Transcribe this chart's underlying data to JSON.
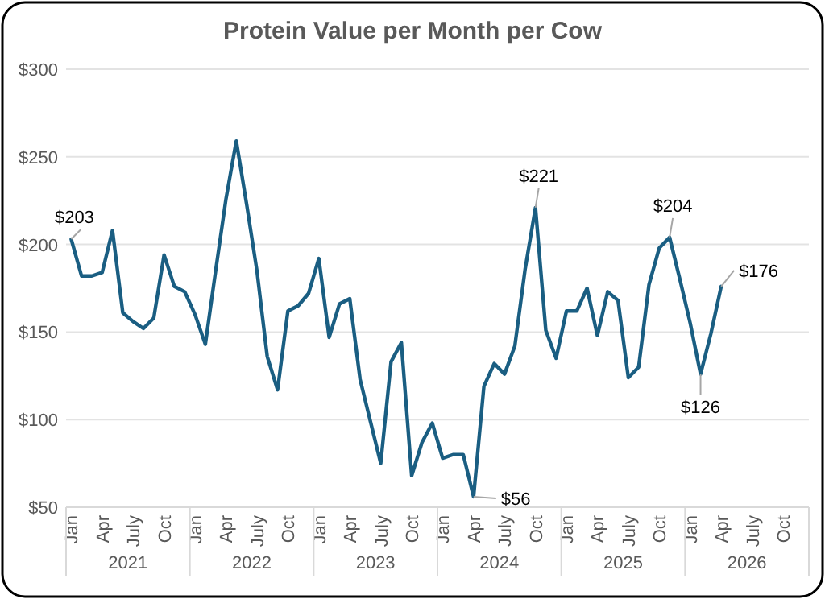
{
  "chart_data": {
    "type": "line",
    "title": "Protein Value per Month per Cow",
    "categories": [
      "Jan",
      null,
      null,
      "Apr",
      null,
      null,
      "July",
      null,
      null,
      "Oct",
      null,
      null,
      "Jan",
      null,
      null,
      "Apr",
      null,
      null,
      "July",
      null,
      null,
      "Oct",
      null,
      null,
      "Jan",
      null,
      null,
      "Apr",
      null,
      null,
      "July",
      null,
      null,
      "Oct",
      null,
      null,
      "Jan",
      null,
      null,
      "Apr",
      null,
      null,
      "July",
      null,
      null,
      "Oct",
      null,
      null,
      "Jan",
      null,
      null,
      "Apr",
      null,
      null,
      "July",
      null,
      null,
      "Oct",
      null,
      null,
      "Jan",
      null,
      null,
      "Apr",
      null,
      null,
      "July",
      null,
      null,
      "Oct",
      null,
      null
    ],
    "annotations": [
      "2021",
      "2022",
      "2023",
      "2024",
      "2025",
      "2026"
    ],
    "series": [
      {
        "color": "#1a5e82",
        "values": [
          203,
          182,
          182,
          184,
          208,
          161,
          156,
          152,
          158,
          194,
          176,
          173,
          160,
          143,
          185,
          226,
          259,
          223,
          185,
          136,
          117,
          162,
          165,
          172,
          192,
          147,
          166,
          169,
          123,
          99,
          75,
          133,
          144,
          68,
          87,
          98,
          78,
          80,
          80,
          56,
          119,
          132,
          126,
          142,
          186,
          221,
          151,
          135,
          162,
          162,
          175,
          148,
          173,
          168,
          124,
          130,
          177,
          198,
          204,
          180,
          155,
          126,
          149,
          176,
          null,
          null,
          null,
          null,
          null,
          null,
          null,
          null
        ],
        "value_labels": [
          "$203",
          null,
          null,
          null,
          null,
          null,
          null,
          null,
          null,
          null,
          null,
          null,
          null,
          null,
          null,
          null,
          null,
          null,
          null,
          null,
          null,
          null,
          null,
          null,
          null,
          null,
          null,
          null,
          null,
          null,
          null,
          null,
          null,
          null,
          null,
          null,
          null,
          null,
          null,
          "$56",
          null,
          null,
          null,
          null,
          null,
          "$221",
          null,
          null,
          null,
          null,
          null,
          null,
          null,
          null,
          null,
          null,
          null,
          null,
          "$204",
          null,
          null,
          "$126",
          null,
          "$176",
          null,
          null,
          null,
          null,
          null,
          null,
          null,
          null
        ]
      }
    ],
    "ylim": [
      50,
      300
    ],
    "yticks": [
      {
        "value": 50,
        "label": "$50"
      },
      {
        "value": 100,
        "label": "$100"
      },
      {
        "value": 150,
        "label": "$150"
      },
      {
        "value": 200,
        "label": "$200"
      },
      {
        "value": 250,
        "label": "$250"
      },
      {
        "value": 300,
        "label": "$300"
      }
    ],
    "grid": "y",
    "marker": "none",
    "line_style": "solid"
  }
}
